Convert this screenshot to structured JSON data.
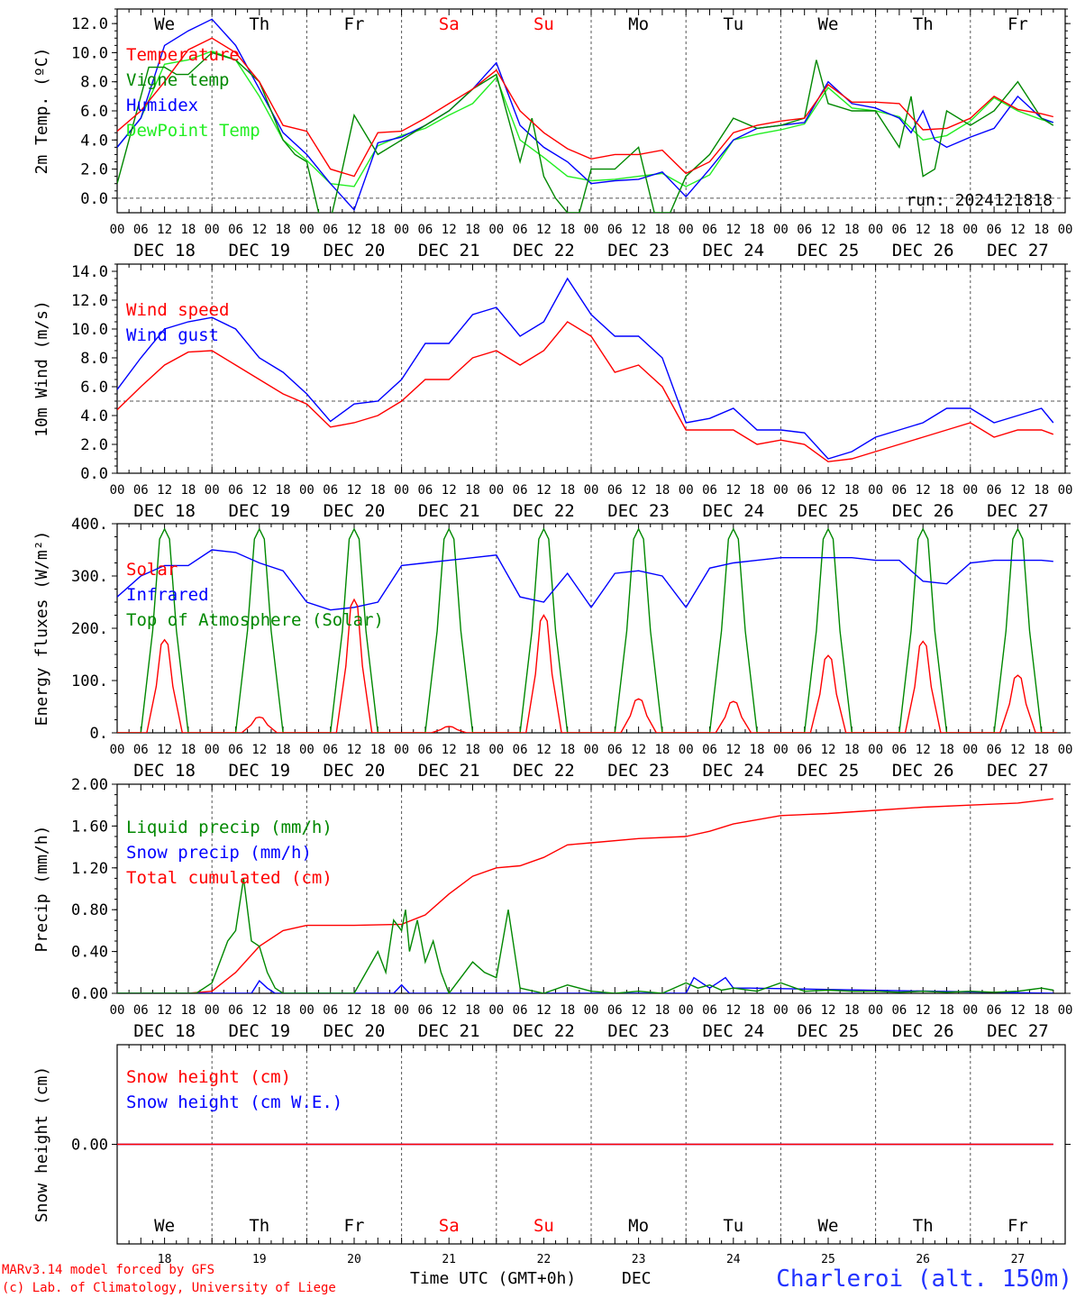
{
  "run_label": "run: 2024121818",
  "footer": {
    "credit_line1": "MARv3.14 model forced by GFS",
    "credit_line2": "(c) Lab. of Climatology, University of Liege",
    "time_label": "Time UTC (GMT+0h)",
    "month_label": "DEC",
    "location": "Charleroi (alt. 150m)"
  },
  "days": [
    "We",
    "Th",
    "Fr",
    "Sa",
    "Su",
    "Mo",
    "Tu",
    "We",
    "Th",
    "Fr"
  ],
  "weekend_days": [
    "Sa",
    "Su"
  ],
  "day_numbers": [
    "18",
    "19",
    "20",
    "21",
    "22",
    "23",
    "24",
    "25",
    "26",
    "27"
  ],
  "date_labels": [
    "DEC 18",
    "DEC 19",
    "DEC 20",
    "DEC 21",
    "DEC 22",
    "DEC 23",
    "DEC 24",
    "DEC 25",
    "DEC 26",
    "DEC 27"
  ],
  "hour_labels": [
    "00",
    "06",
    "12",
    "18"
  ],
  "hour_label_end": "00",
  "colors": {
    "red": "#ff0000",
    "green": "#008800",
    "blue": "#0000ff",
    "light_green": "#22ee22",
    "axis": "#000000",
    "grid": "#555555"
  },
  "chart_data": [
    {
      "type": "line",
      "ylabel": "2m Temp. (ºC)",
      "ylim": [
        -1,
        13
      ],
      "yticks": [
        0,
        2,
        4,
        6,
        8,
        10,
        12
      ],
      "ytick_labels": [
        "0.0",
        "2.0",
        "4.0",
        "6.0",
        "8.0",
        "10.0",
        "12.0"
      ],
      "x_unit": "hours since DEC 18 00 UTC",
      "dashed_y": 0,
      "series": [
        {
          "name": "Temperature",
          "color": "red",
          "x": [
            0,
            6,
            12,
            18,
            24,
            30,
            36,
            42,
            48,
            54,
            60,
            66,
            72,
            78,
            84,
            90,
            96,
            102,
            108,
            114,
            120,
            126,
            132,
            138,
            144,
            150,
            156,
            162,
            168,
            174,
            180,
            186,
            192,
            198,
            204,
            210,
            216,
            222,
            228,
            234,
            237
          ],
          "y": [
            4.6,
            6,
            8,
            10.2,
            11,
            10,
            8,
            5,
            4.6,
            2,
            1.5,
            4.5,
            4.6,
            5.5,
            6.5,
            7.5,
            8.8,
            6,
            4.5,
            3.4,
            2.7,
            3,
            3,
            3.3,
            1.7,
            2.5,
            4.5,
            5,
            5.3,
            5.5,
            7.8,
            6.6,
            6.6,
            6.5,
            4.7,
            4.8,
            5.5,
            7,
            6.1,
            5.8,
            5.6
          ]
        },
        {
          "name": "Vigne temp",
          "color": "green",
          "x": [
            0,
            4,
            8,
            12,
            15,
            18,
            24,
            30,
            36,
            42,
            45,
            48,
            51,
            54,
            57,
            60,
            66,
            72,
            78,
            84,
            90,
            96,
            99,
            102,
            105,
            108,
            111,
            114,
            117,
            120,
            126,
            132,
            136,
            140,
            144,
            150,
            156,
            162,
            168,
            174,
            177,
            180,
            186,
            192,
            198,
            201,
            204,
            207,
            210,
            216,
            222,
            228,
            234,
            237
          ],
          "y": [
            1,
            5,
            9,
            9,
            8.5,
            8.5,
            10,
            9.5,
            8,
            4,
            3,
            2.5,
            -1,
            -1.5,
            2,
            5.7,
            3,
            4,
            5,
            6,
            7.5,
            8.5,
            5.5,
            2.5,
            5.5,
            1.5,
            0,
            -1,
            -1,
            2,
            2,
            3.5,
            -1,
            -1,
            1.5,
            3,
            5.5,
            4.8,
            5,
            5.5,
            9.5,
            6.5,
            6,
            6,
            3.5,
            7,
            1.5,
            2,
            6,
            5,
            6,
            8,
            5.5,
            5
          ]
        },
        {
          "name": "Humidex",
          "color": "blue",
          "x": [
            0,
            6,
            12,
            18,
            24,
            30,
            36,
            42,
            48,
            54,
            60,
            66,
            72,
            78,
            84,
            90,
            96,
            102,
            108,
            114,
            120,
            126,
            132,
            138,
            144,
            150,
            156,
            162,
            168,
            174,
            180,
            186,
            192,
            198,
            201,
            204,
            207,
            210,
            216,
            222,
            228,
            234,
            237
          ],
          "y": [
            3.5,
            5.5,
            10.5,
            11.5,
            12.3,
            10.5,
            7.5,
            4.5,
            3,
            1,
            -0.8,
            3.8,
            4.2,
            5,
            6,
            7.5,
            9.3,
            5,
            3.5,
            2.5,
            1,
            1.2,
            1.3,
            1.8,
            0.1,
            2,
            4,
            4.8,
            5,
            5.2,
            8,
            6.5,
            6.2,
            5.5,
            4.5,
            6,
            4,
            3.5,
            4.2,
            4.8,
            7,
            5.5,
            5.2
          ]
        },
        {
          "name": "DewPoint Temp",
          "color": "light_green",
          "x": [
            0,
            6,
            12,
            18,
            24,
            30,
            36,
            42,
            48,
            54,
            60,
            66,
            72,
            78,
            84,
            90,
            96,
            102,
            108,
            114,
            120,
            126,
            132,
            138,
            144,
            150,
            156,
            162,
            168,
            174,
            180,
            186,
            192,
            198,
            204,
            210,
            216,
            222,
            228,
            234,
            237
          ],
          "y": [
            3.5,
            5.5,
            9.2,
            9.5,
            10.1,
            9.5,
            7,
            4,
            2.6,
            1,
            0.8,
            3.6,
            4.3,
            4.8,
            5.7,
            6.5,
            8.3,
            4,
            2.8,
            1.5,
            1.2,
            1.3,
            1.5,
            1.7,
            0.8,
            1.6,
            4,
            4.4,
            4.7,
            5.1,
            7.6,
            6.2,
            6,
            5.6,
            4,
            4.3,
            5.3,
            6.9,
            6,
            5.4,
            5.2
          ]
        }
      ]
    },
    {
      "type": "line",
      "ylabel": "10m Wind (m/s)",
      "ylim": [
        0,
        14.5
      ],
      "yticks": [
        0,
        2,
        4,
        6,
        8,
        10,
        12,
        14
      ],
      "ytick_labels": [
        "0.0",
        "2.0",
        "4.0",
        "6.0",
        "8.0",
        "10.0",
        "12.0",
        "14.0"
      ],
      "x_unit": "hours since DEC 18 00 UTC",
      "dashed_y": 5,
      "series": [
        {
          "name": "Wind speed",
          "color": "red",
          "x": [
            0,
            6,
            12,
            18,
            24,
            30,
            36,
            42,
            48,
            54,
            60,
            66,
            72,
            78,
            84,
            90,
            96,
            102,
            108,
            114,
            120,
            126,
            132,
            138,
            144,
            150,
            156,
            162,
            168,
            174,
            180,
            186,
            192,
            198,
            204,
            210,
            216,
            222,
            228,
            234,
            237
          ],
          "y": [
            4.4,
            6,
            7.5,
            8.4,
            8.5,
            7.5,
            6.5,
            5.5,
            4.8,
            3.2,
            3.5,
            4,
            5,
            6.5,
            6.5,
            8,
            8.5,
            7.5,
            8.5,
            10.5,
            9.5,
            7,
            7.5,
            6,
            3,
            3,
            3,
            2,
            2.3,
            2,
            0.8,
            1,
            1.5,
            2,
            2.5,
            3,
            3.5,
            2.5,
            3,
            3,
            2.7
          ]
        },
        {
          "name": "Wind gust",
          "color": "blue",
          "x": [
            0,
            6,
            12,
            18,
            24,
            30,
            36,
            42,
            48,
            54,
            60,
            66,
            72,
            78,
            84,
            90,
            96,
            102,
            108,
            114,
            120,
            126,
            132,
            138,
            144,
            150,
            156,
            162,
            168,
            174,
            180,
            186,
            192,
            198,
            204,
            210,
            216,
            222,
            228,
            234,
            237
          ],
          "y": [
            5.8,
            8,
            10,
            10.5,
            10.8,
            10,
            8,
            7,
            5.5,
            3.6,
            4.8,
            5,
            6.5,
            9,
            9,
            11,
            11.5,
            9.5,
            10.5,
            13.5,
            11,
            9.5,
            9.5,
            8,
            3.5,
            3.8,
            4.5,
            3,
            3,
            2.8,
            1,
            1.5,
            2.5,
            3,
            3.5,
            4.5,
            4.5,
            3.5,
            4,
            4.5,
            3.5
          ]
        }
      ]
    },
    {
      "type": "line",
      "ylabel": "Energy fluxes (W/m²)",
      "ylim": [
        0,
        400
      ],
      "yticks": [
        0,
        100,
        200,
        300,
        400
      ],
      "ytick_labels": [
        "0.",
        "100.",
        "200.",
        "300.",
        "400."
      ],
      "x_unit": "hours since DEC 18 00 UTC",
      "series": [
        {
          "name": "Solar",
          "color": "red",
          "day_peaks": [
            178,
            30,
            255,
            12,
            225,
            65,
            60,
            148,
            175,
            110
          ]
        },
        {
          "name": "Infrared",
          "color": "blue",
          "x": [
            0,
            6,
            12,
            18,
            24,
            30,
            36,
            42,
            48,
            54,
            60,
            66,
            72,
            78,
            84,
            90,
            96,
            102,
            108,
            114,
            120,
            126,
            132,
            138,
            144,
            150,
            156,
            162,
            168,
            174,
            180,
            186,
            192,
            198,
            204,
            210,
            216,
            222,
            228,
            234,
            237
          ],
          "y": [
            260,
            300,
            320,
            320,
            350,
            345,
            325,
            310,
            250,
            235,
            240,
            250,
            320,
            325,
            330,
            335,
            340,
            260,
            250,
            305,
            240,
            305,
            310,
            300,
            240,
            315,
            325,
            330,
            335,
            335,
            335,
            335,
            330,
            330,
            290,
            285,
            325,
            330,
            330,
            330,
            328
          ]
        },
        {
          "name": "Top of Atmosphere (Solar)",
          "color": "green",
          "day_peaks": [
            390,
            390,
            390,
            390,
            390,
            390,
            390,
            390,
            390,
            390
          ]
        }
      ]
    },
    {
      "type": "line",
      "ylabel": "Precip (mm/h)",
      "ylim": [
        0,
        2.0
      ],
      "yticks": [
        0,
        0.4,
        0.8,
        1.2,
        1.6,
        2.0
      ],
      "ytick_labels": [
        "0.00",
        "0.40",
        "0.80",
        "1.20",
        "1.60",
        "2.00"
      ],
      "x_unit": "hours since DEC 18 00 UTC",
      "series": [
        {
          "name": "Liquid precip (mm/h)",
          "color": "green",
          "x": [
            0,
            20,
            24,
            26,
            28,
            30,
            32,
            34,
            36,
            38,
            40,
            42,
            50,
            60,
            66,
            68,
            70,
            72,
            73,
            74,
            76,
            78,
            80,
            82,
            84,
            90,
            93,
            96,
            99,
            102,
            108,
            114,
            120,
            126,
            132,
            138,
            144,
            147,
            150,
            153,
            156,
            162,
            168,
            174,
            180,
            186,
            192,
            198,
            204,
            210,
            216,
            222,
            228,
            234,
            237
          ],
          "y": [
            0,
            0,
            0.1,
            0.3,
            0.5,
            0.6,
            1.1,
            0.5,
            0.45,
            0.2,
            0.05,
            0,
            0,
            0,
            0.4,
            0.2,
            0.7,
            0.6,
            0.8,
            0.4,
            0.7,
            0.3,
            0.5,
            0.2,
            0,
            0.3,
            0.2,
            0.15,
            0.8,
            0.05,
            0,
            0.08,
            0.02,
            0,
            0.02,
            0,
            0.1,
            0.05,
            0.08,
            0.03,
            0.05,
            0.02,
            0.1,
            0.02,
            0.03,
            0.02,
            0.02,
            0.01,
            0.02,
            0.01,
            0.02,
            0.01,
            0.02,
            0.05,
            0.03
          ]
        },
        {
          "name": "Snow precip (mm/h)",
          "color": "blue",
          "x": [
            0,
            34,
            36,
            38,
            40,
            70,
            72,
            74,
            144,
            146,
            148,
            150,
            152,
            154,
            156,
            160,
            237
          ],
          "y": [
            0,
            0,
            0.12,
            0.05,
            0,
            0,
            0.08,
            0,
            0,
            0.15,
            0.1,
            0.05,
            0.1,
            0.15,
            0.05,
            0.05,
            0
          ]
        },
        {
          "name": "Total cumulated (cm)",
          "color": "red",
          "x": [
            0,
            18,
            24,
            30,
            36,
            42,
            48,
            60,
            72,
            78,
            84,
            90,
            96,
            102,
            108,
            114,
            120,
            132,
            144,
            150,
            156,
            168,
            180,
            192,
            204,
            216,
            228,
            237
          ],
          "y": [
            0,
            0,
            0.02,
            0.2,
            0.45,
            0.6,
            0.65,
            0.65,
            0.66,
            0.75,
            0.95,
            1.12,
            1.2,
            1.22,
            1.3,
            1.42,
            1.44,
            1.48,
            1.5,
            1.55,
            1.62,
            1.7,
            1.72,
            1.75,
            1.78,
            1.8,
            1.82,
            1.86
          ]
        }
      ]
    },
    {
      "type": "line",
      "ylabel": "Snow height (cm)",
      "ylim": [
        -1,
        1
      ],
      "yticks": [
        0
      ],
      "ytick_labels": [
        "0.00"
      ],
      "x_unit": "hours since DEC 18 00 UTC",
      "series": [
        {
          "name": "Snow height (cm)",
          "color": "red",
          "x": [
            0,
            237
          ],
          "y": [
            0,
            0
          ]
        },
        {
          "name": "Snow height (cm W.E.)",
          "color": "blue",
          "x": [
            0,
            237
          ],
          "y": [
            0,
            0
          ]
        }
      ]
    }
  ]
}
